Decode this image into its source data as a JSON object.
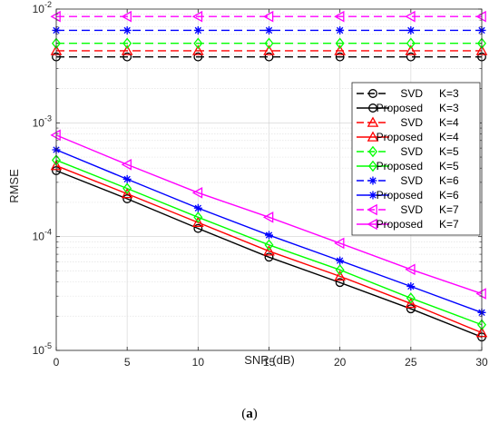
{
  "caption": {
    "open": "(",
    "letter": "a",
    "close": ")"
  },
  "chart_data": {
    "type": "line",
    "xlabel": "SNR (dB)",
    "ylabel": "RMSE",
    "yscale": "log",
    "xlim": [
      0,
      30
    ],
    "ylim": [
      1e-05,
      0.01
    ],
    "grid": true,
    "legend_position": "right",
    "x": [
      0,
      5,
      10,
      15,
      20,
      25,
      30
    ],
    "x_ticks": [
      "0",
      "5",
      "10",
      "15",
      "20",
      "25",
      "30"
    ],
    "y_ticks": [
      {
        "value": 1e-05,
        "base": "10",
        "exp": "-5"
      },
      {
        "value": 0.0001,
        "base": "10",
        "exp": "-4"
      },
      {
        "value": 0.001,
        "base": "10",
        "exp": "-3"
      },
      {
        "value": 0.01,
        "base": "10",
        "exp": "-2"
      }
    ],
    "series": [
      {
        "name": "SVD",
        "k_label": "K=3",
        "color": "#000000",
        "dash": true,
        "marker": "circle",
        "values": [
          0.0038,
          0.0038,
          0.0038,
          0.0038,
          0.0038,
          0.0038,
          0.0038
        ]
      },
      {
        "name": "Proposed",
        "k_label": "K=3",
        "color": "#000000",
        "dash": false,
        "marker": "circle",
        "values": [
          0.00038,
          0.000215,
          0.000118,
          6.6e-05,
          3.95e-05,
          2.32e-05,
          1.31e-05
        ]
      },
      {
        "name": "SVD",
        "k_label": "K=4",
        "color": "#ff0000",
        "dash": true,
        "marker": "triangle",
        "values": [
          0.0043,
          0.0043,
          0.0043,
          0.0043,
          0.0043,
          0.0043,
          0.0043
        ]
      },
      {
        "name": "Proposed",
        "k_label": "K=4",
        "color": "#ff0000",
        "dash": false,
        "marker": "triangle",
        "values": [
          0.00042,
          0.000238,
          0.000133,
          7.45e-05,
          4.48e-05,
          2.58e-05,
          1.43e-05
        ]
      },
      {
        "name": "SVD",
        "k_label": "K=5",
        "color": "#00ff00",
        "dash": true,
        "marker": "diamond",
        "values": [
          0.005,
          0.005,
          0.005,
          0.005,
          0.005,
          0.005,
          0.005
        ]
      },
      {
        "name": "Proposed",
        "k_label": "K=5",
        "color": "#00ff00",
        "dash": false,
        "marker": "diamond",
        "values": [
          0.00047,
          0.000265,
          0.000148,
          8.45e-05,
          5.1e-05,
          2.88e-05,
          1.68e-05
        ]
      },
      {
        "name": "SVD",
        "k_label": "K=6",
        "color": "#0000ff",
        "dash": true,
        "marker": "star",
        "values": [
          0.0065,
          0.0065,
          0.0065,
          0.0065,
          0.0065,
          0.0065,
          0.0065
        ]
      },
      {
        "name": "Proposed",
        "k_label": "K=6",
        "color": "#0000ff",
        "dash": false,
        "marker": "star",
        "values": [
          0.00058,
          0.00032,
          0.000178,
          0.000103,
          6.15e-05,
          3.65e-05,
          2.15e-05
        ]
      },
      {
        "name": "SVD",
        "k_label": "K=7",
        "color": "#ff00ff",
        "dash": true,
        "marker": "triangle-left",
        "values": [
          0.0086,
          0.0086,
          0.0086,
          0.0086,
          0.0086,
          0.0086,
          0.0086
        ]
      },
      {
        "name": "Proposed",
        "k_label": "K=7",
        "color": "#ff00ff",
        "dash": false,
        "marker": "triangle-left",
        "values": [
          0.00078,
          0.00043,
          0.000243,
          0.000148,
          8.75e-05,
          5.15e-05,
          3.15e-05
        ]
      }
    ]
  }
}
